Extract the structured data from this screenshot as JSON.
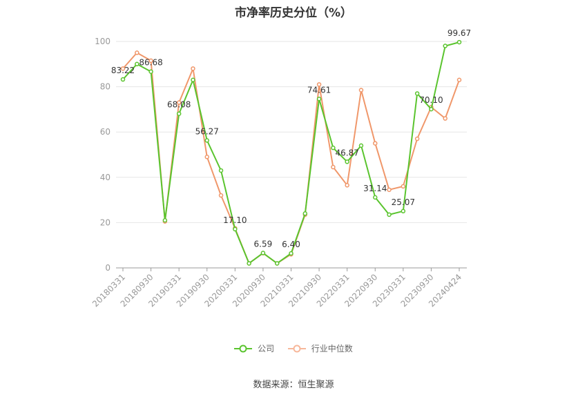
{
  "chart_data": {
    "type": "line",
    "title": "市净率历史分位（%）",
    "xlabel": "",
    "ylabel": "",
    "ylim": [
      0,
      100
    ],
    "yticks": [
      0,
      20,
      40,
      60,
      80,
      100
    ],
    "grid": true,
    "legend_position": "bottom",
    "x_tick_labels": [
      "20180331",
      "20180930",
      "20190331",
      "20190930",
      "20200331",
      "20200930",
      "20210331",
      "20210930",
      "20220331",
      "20220930",
      "20230331",
      "20230930",
      "20240424"
    ],
    "x": [
      "20180331",
      "20180630",
      "20180930",
      "20181231",
      "20190331",
      "20190630",
      "20190930",
      "20191231",
      "20200331",
      "20200630",
      "20200930",
      "20201231",
      "20210331",
      "20210630",
      "20210930",
      "20211231",
      "20220331",
      "20220630",
      "20220930",
      "20221231",
      "20230331",
      "20230630",
      "20230930",
      "20231231",
      "20240424"
    ],
    "series": [
      {
        "name": "公司",
        "color": "#5ac42e",
        "values": [
          83.22,
          90,
          86.68,
          21,
          68.08,
          83,
          56.27,
          43,
          17.1,
          2,
          6.59,
          2,
          6.4,
          24,
          74.61,
          53,
          46.87,
          54,
          31.14,
          23.5,
          25.07,
          77,
          70.1,
          98,
          99.67
        ],
        "labels": {
          "0": "83.22",
          "2": "86.68",
          "4": "68.08",
          "6": "56.27",
          "8": "17.10",
          "10": "6.59",
          "12": "6.40",
          "14": "74.61",
          "16": "46.87",
          "18": "31.14",
          "20": "25.07",
          "22": "70.10",
          "24": "99.67"
        }
      },
      {
        "name": "行业中位数",
        "color": "#f0976a",
        "values": [
          88,
          95,
          91.5,
          20.5,
          73,
          88,
          49,
          32,
          17.5,
          2,
          6.5,
          2,
          6,
          23.5,
          81,
          44.5,
          36.5,
          78.5,
          55,
          34.5,
          36,
          57,
          71,
          66,
          83
        ]
      }
    ]
  },
  "source": "数据来源：恒生聚源"
}
